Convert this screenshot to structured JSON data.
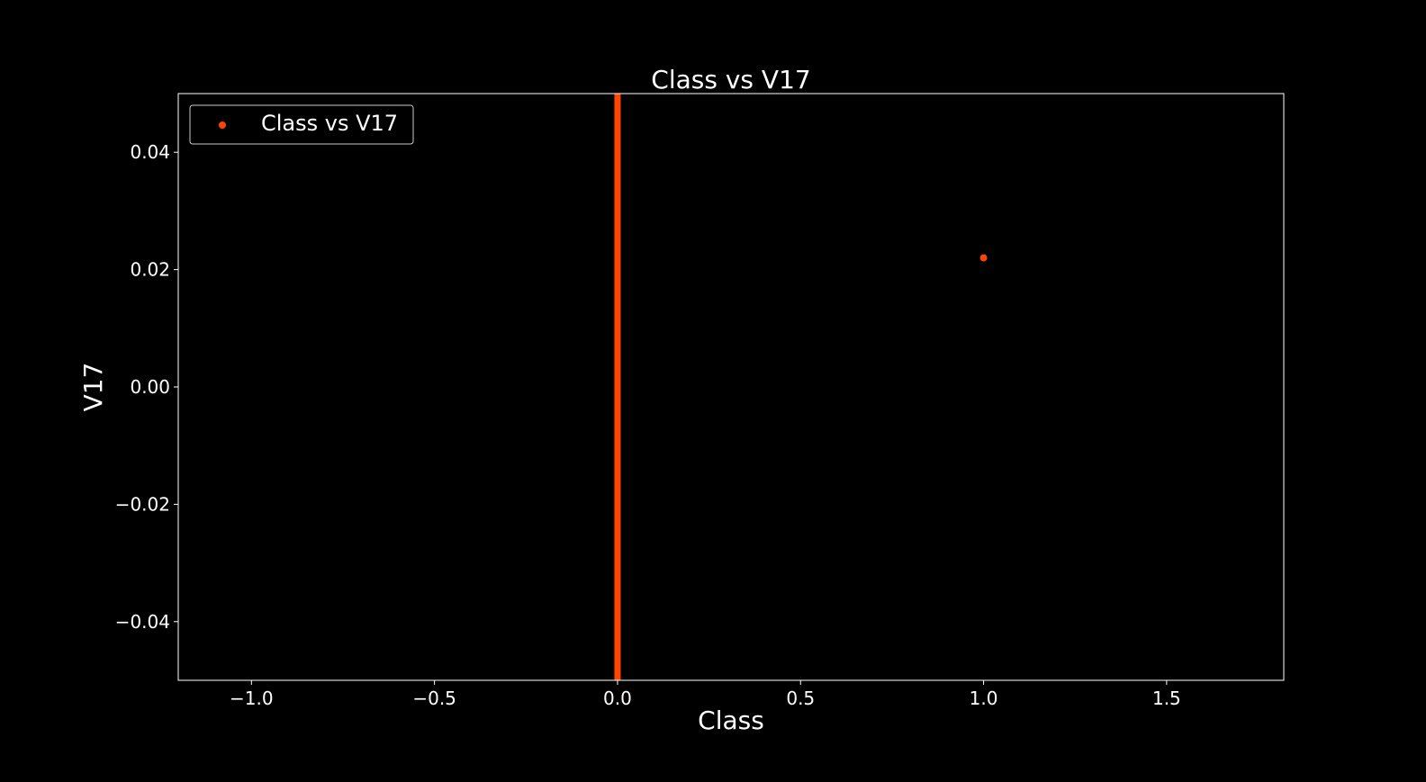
{
  "chart_data": {
    "type": "scatter",
    "title": "Class vs V17",
    "xlabel": "Class",
    "ylabel": "V17",
    "xlim": [
      -1.2,
      1.82
    ],
    "ylim": [
      -0.05,
      0.05
    ],
    "x_ticks": [
      -1.0,
      -0.5,
      0.0,
      0.5,
      1.0,
      1.5
    ],
    "x_tick_labels": [
      "−1.0",
      "−0.5",
      "0.0",
      "0.5",
      "1.0",
      "1.5"
    ],
    "y_ticks": [
      0.04,
      0.02,
      0.0,
      -0.02,
      -0.04
    ],
    "y_tick_labels": [
      "0.04",
      "0.02",
      "0.00",
      "−0.02",
      "−0.04"
    ],
    "grid": false,
    "legend_position": "top-left",
    "series": [
      {
        "name": "Class vs V17",
        "color": "#ff4500",
        "points": [
          {
            "x": 1.0,
            "y": 0.022
          }
        ],
        "dense_column": {
          "x": 0.0,
          "y_from": -0.05,
          "y_to": 0.05
        }
      }
    ],
    "colors": {
      "background": "#000000",
      "foreground": "#ffffff",
      "marker": "#ff4500"
    }
  }
}
